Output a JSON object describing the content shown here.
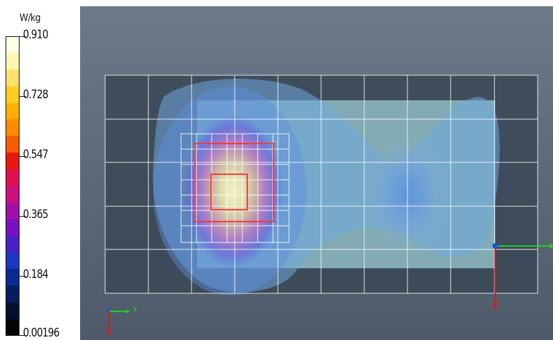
{
  "legend": {
    "unit": "W/kg",
    "labels": [
      "0.910",
      "0.728",
      "0.547",
      "0.365",
      "0.184",
      "0.00196"
    ],
    "colors": [
      "#ffffe6",
      "#fff7b0",
      "#ffe06e",
      "#ffcc22",
      "#ffb000",
      "#ff8c00",
      "#f55a00",
      "#e8180e",
      "#e01050",
      "#cc1080",
      "#a010a8",
      "#7a10c0",
      "#4820c8",
      "#1a38c0",
      "#0a2a90",
      "#061e60",
      "#041030",
      "#020408"
    ]
  },
  "scene": {
    "coordinate_axes": {
      "y_label": "y",
      "z_label": "z"
    },
    "colors": {
      "background_top": "#6b7989",
      "background_bottom": "#4e5a69",
      "grid": "#ffffff",
      "phantom": "#8ebcc4",
      "zoom_box": "#ff3b3b",
      "axis_x": "#cc2020",
      "axis_y": "#20d020",
      "axis_z": "#2050e0"
    }
  }
}
